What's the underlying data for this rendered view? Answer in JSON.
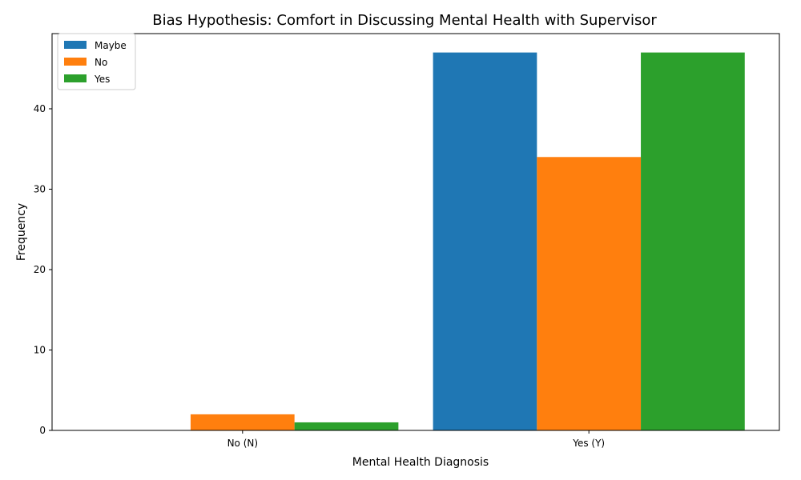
{
  "chart_data": {
    "type": "bar",
    "title": "Bias Hypothesis: Comfort in Discussing Mental Health with Supervisor",
    "xlabel": "Mental Health Diagnosis",
    "ylabel": "Frequency",
    "categories": [
      "No (N)",
      "Yes (Y)"
    ],
    "series": [
      {
        "name": "Maybe",
        "color": "#1f77b4",
        "values": [
          0,
          47
        ]
      },
      {
        "name": "No",
        "color": "#ff7f0e",
        "values": [
          2,
          34
        ]
      },
      {
        "name": "Yes",
        "color": "#2ca02c",
        "values": [
          1,
          47
        ]
      }
    ],
    "ylim": [
      0,
      49.35
    ],
    "yticks": [
      0,
      10,
      20,
      30,
      40
    ],
    "legend_position": "top-left",
    "grid": false
  }
}
